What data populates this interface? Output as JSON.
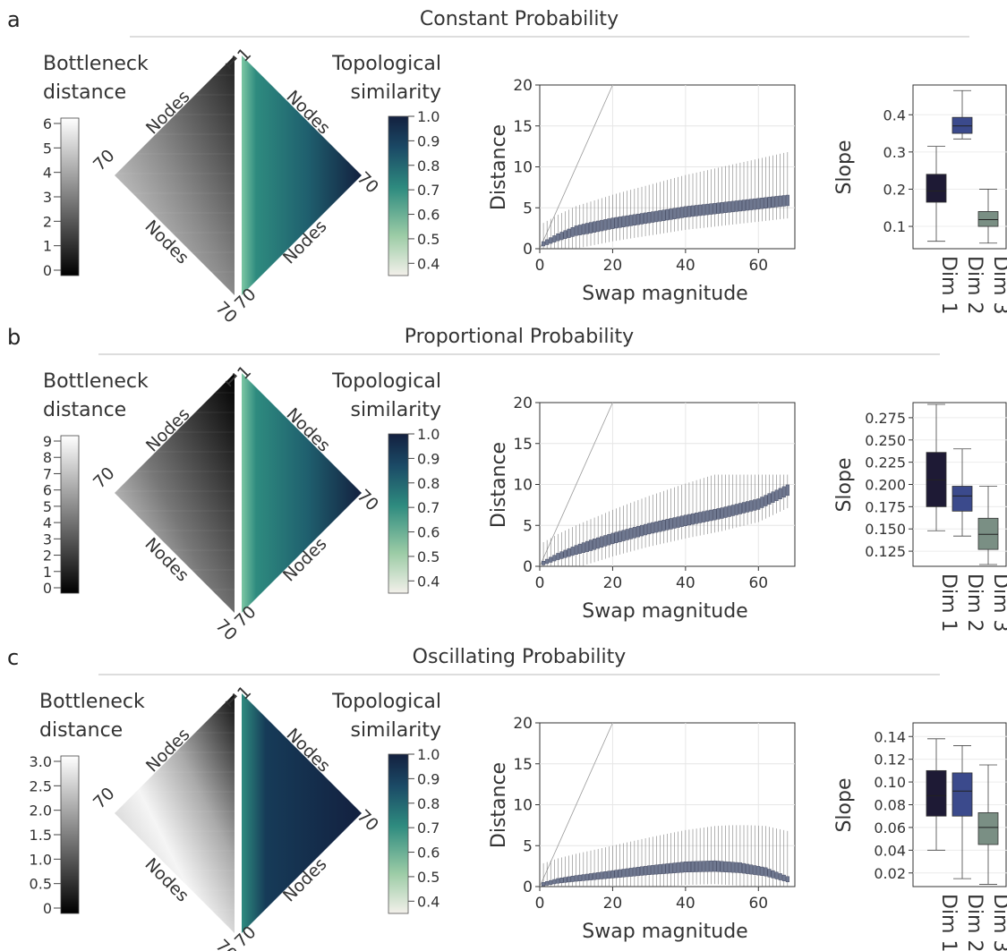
{
  "labels": {
    "bottleneck": [
      "Bottleneck",
      "distance"
    ],
    "topological": [
      "Topological",
      "similarity"
    ],
    "nodes": "Nodes",
    "node_start": "1",
    "node_end": "70",
    "distance_axis": "Distance",
    "swap_axis": "Swap magnitude",
    "slope_axis": "Slope",
    "dims": [
      "Dim 1",
      "Dim 2",
      "Dim 3"
    ]
  },
  "colors": {
    "dim1": "#1e1a35",
    "dim2": "#3b4a8c",
    "dim3": "#7a8f84",
    "box_fill": "#6f7890",
    "teal_dark": "#13203f",
    "teal_mid": "#2e8b7f",
    "teal_light": "#f2efe9"
  },
  "panels": [
    {
      "letter": "a",
      "title": "Constant Probability",
      "bottleneck_ticks": [
        "0",
        "1",
        "2",
        "3",
        "4",
        "5",
        "6"
      ],
      "similarity_ticks": [
        "0.4",
        "0.5",
        "0.6",
        "0.7",
        "0.8",
        "0.9",
        "1.0"
      ],
      "chart_data": [
        {
          "type": "box",
          "xlabel": "Swap magnitude",
          "ylabel": "Distance",
          "x_ticks": [
            "0",
            "20",
            "40",
            "60"
          ],
          "y_ticks": [
            "0",
            "5",
            "10",
            "15",
            "20"
          ],
          "xlim": [
            0,
            70
          ],
          "ylim": [
            0,
            20
          ],
          "median_curve": [
            [
              1,
              0.6
            ],
            [
              5,
              1.4
            ],
            [
              10,
              2.2
            ],
            [
              20,
              3.1
            ],
            [
              30,
              3.8
            ],
            [
              40,
              4.5
            ],
            [
              50,
              5.0
            ],
            [
              60,
              5.5
            ],
            [
              68,
              5.9
            ]
          ],
          "identity_line": true
        },
        {
          "type": "box",
          "ylabel": "Slope",
          "categories": [
            "Dim 1",
            "Dim 2",
            "Dim 3"
          ],
          "y_ticks": [
            "0.1",
            "0.2",
            "0.3",
            "0.4"
          ],
          "ylim": [
            0.04,
            0.48
          ],
          "boxes": [
            {
              "name": "Dim 1",
              "min": 0.06,
              "q1": 0.165,
              "median": 0.195,
              "q3": 0.24,
              "max": 0.315
            },
            {
              "name": "Dim 2",
              "min": 0.335,
              "q1": 0.35,
              "median": 0.37,
              "q3": 0.393,
              "max": 0.465
            },
            {
              "name": "Dim 3",
              "min": 0.055,
              "q1": 0.1,
              "median": 0.118,
              "q3": 0.14,
              "max": 0.2
            }
          ]
        }
      ]
    },
    {
      "letter": "b",
      "title": "Proportional Probability",
      "bottleneck_ticks": [
        "0",
        "1",
        "2",
        "3",
        "4",
        "5",
        "6",
        "7",
        "8",
        "9"
      ],
      "similarity_ticks": [
        "0.4",
        "0.5",
        "0.6",
        "0.7",
        "0.8",
        "0.9",
        "1.0"
      ],
      "chart_data": [
        {
          "type": "box",
          "xlabel": "Swap magnitude",
          "ylabel": "Distance",
          "x_ticks": [
            "0",
            "20",
            "40",
            "60"
          ],
          "y_ticks": [
            "0",
            "5",
            "10",
            "15",
            "20"
          ],
          "xlim": [
            0,
            70
          ],
          "ylim": [
            0,
            20
          ],
          "median_curve": [
            [
              1,
              0.4
            ],
            [
              5,
              1.2
            ],
            [
              10,
              2.0
            ],
            [
              20,
              3.4
            ],
            [
              30,
              4.6
            ],
            [
              40,
              5.6
            ],
            [
              50,
              6.5
            ],
            [
              60,
              7.6
            ],
            [
              68,
              9.3
            ]
          ],
          "identity_line": true
        },
        {
          "type": "box",
          "ylabel": "Slope",
          "categories": [
            "Dim 1",
            "Dim 2",
            "Dim 3"
          ],
          "y_ticks": [
            "0.125",
            "0.150",
            "0.175",
            "0.200",
            "0.225",
            "0.250",
            "0.275"
          ],
          "ylim": [
            0.108,
            0.292
          ],
          "boxes": [
            {
              "name": "Dim 1",
              "min": 0.148,
              "q1": 0.175,
              "median": 0.205,
              "q3": 0.236,
              "max": 0.29
            },
            {
              "name": "Dim 2",
              "min": 0.142,
              "q1": 0.17,
              "median": 0.187,
              "q3": 0.198,
              "max": 0.24
            },
            {
              "name": "Dim 3",
              "min": 0.11,
              "q1": 0.127,
              "median": 0.144,
              "q3": 0.162,
              "max": 0.198
            }
          ]
        }
      ]
    },
    {
      "letter": "c",
      "title": "Oscillating Probability",
      "bottleneck_ticks": [
        "0",
        "0.5",
        "1.0",
        "1.5",
        "2.0",
        "2.5",
        "3.0"
      ],
      "similarity_ticks": [
        "0.4",
        "0.5",
        "0.6",
        "0.7",
        "0.8",
        "0.9",
        "1.0"
      ],
      "chart_data": [
        {
          "type": "box",
          "xlabel": "Swap magnitude",
          "ylabel": "Distance",
          "x_ticks": [
            "0",
            "20",
            "40",
            "60"
          ],
          "y_ticks": [
            "0",
            "5",
            "10",
            "15",
            "20"
          ],
          "xlim": [
            0,
            70
          ],
          "ylim": [
            0,
            20
          ],
          "median_curve": [
            [
              1,
              0.3
            ],
            [
              5,
              0.7
            ],
            [
              10,
              1.0
            ],
            [
              20,
              1.5
            ],
            [
              30,
              2.0
            ],
            [
              40,
              2.4
            ],
            [
              48,
              2.5
            ],
            [
              55,
              2.3
            ],
            [
              62,
              1.8
            ],
            [
              68,
              0.9
            ]
          ],
          "identity_line": true
        },
        {
          "type": "box",
          "ylabel": "Slope",
          "categories": [
            "Dim 1",
            "Dim 2",
            "Dim 3"
          ],
          "y_ticks": [
            "0.02",
            "0.04",
            "0.06",
            "0.08",
            "0.10",
            "0.12",
            "0.14"
          ],
          "ylim": [
            0.008,
            0.152
          ],
          "boxes": [
            {
              "name": "Dim 1",
              "min": 0.04,
              "q1": 0.07,
              "median": 0.088,
              "q3": 0.11,
              "max": 0.138
            },
            {
              "name": "Dim 2",
              "min": 0.015,
              "q1": 0.07,
              "median": 0.092,
              "q3": 0.108,
              "max": 0.132
            },
            {
              "name": "Dim 3",
              "min": 0.01,
              "q1": 0.045,
              "median": 0.06,
              "q3": 0.073,
              "max": 0.115
            }
          ]
        }
      ]
    }
  ]
}
